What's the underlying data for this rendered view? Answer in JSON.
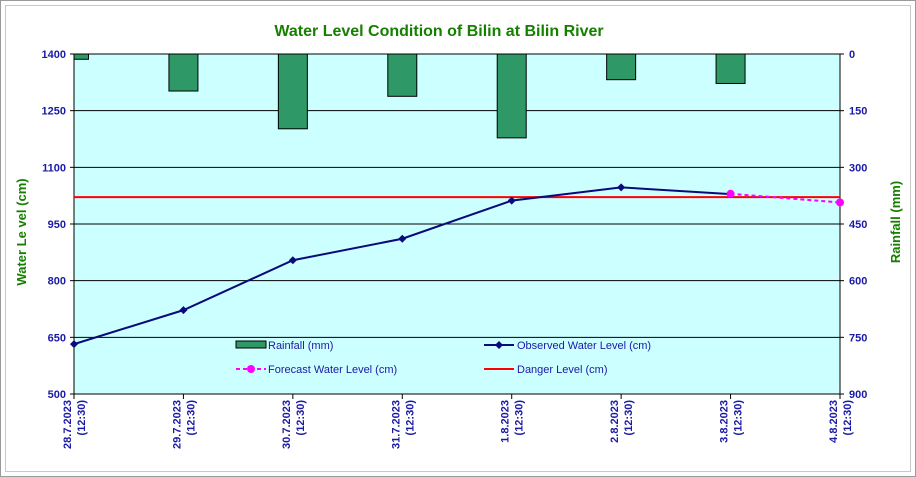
{
  "chart_data": {
    "type": "bar+line",
    "title": "Water Level Condition  of Bilin  at Bilin  River",
    "ylabel": "Water Le vel (cm)",
    "y2label": "Rainfall (mm)",
    "ylim": [
      500,
      1400
    ],
    "yticks": [
      500,
      650,
      800,
      950,
      1100,
      1250,
      1400
    ],
    "y2lim": [
      0,
      900
    ],
    "y2ticks": [
      0,
      150,
      300,
      450,
      600,
      750,
      900
    ],
    "y2_inverted": true,
    "grid": "horizontal",
    "categories": [
      [
        "28.7.2023",
        "(12:30)"
      ],
      [
        "29.7.2023",
        "(12:30)"
      ],
      [
        "30.7.2023",
        "(12:30)"
      ],
      [
        "31.7.2023",
        "(12:30)"
      ],
      [
        "1.8.2023",
        "(12:30)"
      ],
      [
        "2.8.2023",
        "(12:30)"
      ],
      [
        "3.8.2023",
        "(12:30)"
      ],
      [
        "4.8.2023",
        "(12:30)"
      ]
    ],
    "series": [
      {
        "name": "Rainfall (mm)",
        "kind": "bar",
        "axis": "y2",
        "color": "#2e9966",
        "values": [
          14,
          98,
          198,
          112,
          222,
          68,
          78,
          null
        ]
      },
      {
        "name": "Observed Water Level (cm)",
        "kind": "line",
        "axis": "y",
        "color": "#0a0a7a",
        "marker": "diamond",
        "values": [
          632,
          722,
          854,
          911,
          1012,
          1047,
          1029,
          null
        ]
      },
      {
        "name": "Forecast Water Level (cm)",
        "kind": "line",
        "axis": "y",
        "color": "#ff00ff",
        "dashed": true,
        "marker": "circle",
        "values": [
          null,
          null,
          null,
          null,
          null,
          null,
          1030,
          1007
        ]
      },
      {
        "name": "Danger Level (cm)",
        "kind": "hline",
        "axis": "y",
        "color": "#ff0000",
        "value": 1021
      }
    ],
    "plot_background": "#ccffff",
    "legend_position": "inside-bottom"
  }
}
